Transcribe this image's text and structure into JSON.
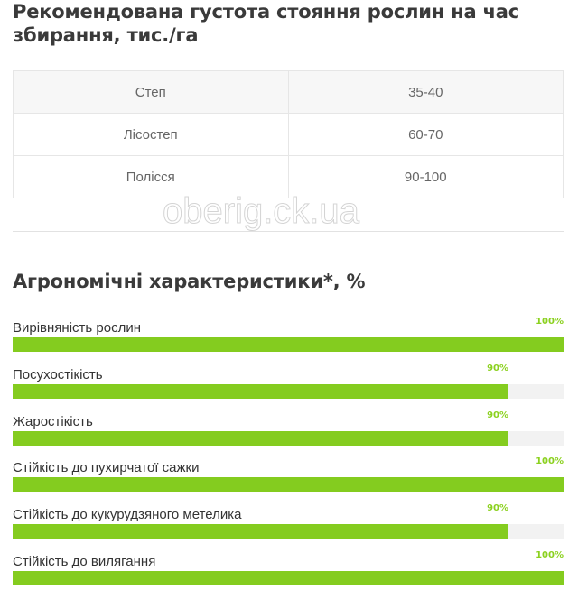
{
  "density": {
    "title": "Рекомендована густота стояння рослин на час збирання, тис./га",
    "rows": [
      {
        "zone": "Степ",
        "value": "35-40"
      },
      {
        "zone": "Лісостеп",
        "value": "60-70"
      },
      {
        "zone": "Полісся",
        "value": "90-100"
      }
    ]
  },
  "agro": {
    "title": "Агрономічні характеристики*, %",
    "items": [
      {
        "label": "Вирівняність рослин",
        "percent": 100,
        "percent_label": "100%"
      },
      {
        "label": "Посухостікість",
        "percent": 90,
        "percent_label": "90%"
      },
      {
        "label": "Жаростікість",
        "percent": 90,
        "percent_label": "90%"
      },
      {
        "label": "Стійкість до пухирчатої сажки",
        "percent": 100,
        "percent_label": "100%"
      },
      {
        "label": "Стійкість до кукурудзяного метелика",
        "percent": 90,
        "percent_label": "90%"
      },
      {
        "label": "Стійкість до вилягання",
        "percent": 100,
        "percent_label": "100%"
      }
    ]
  },
  "watermark": "oberig.ck.ua",
  "colors": {
    "bar": "#84cc1f",
    "track": "#f2f2f2"
  }
}
